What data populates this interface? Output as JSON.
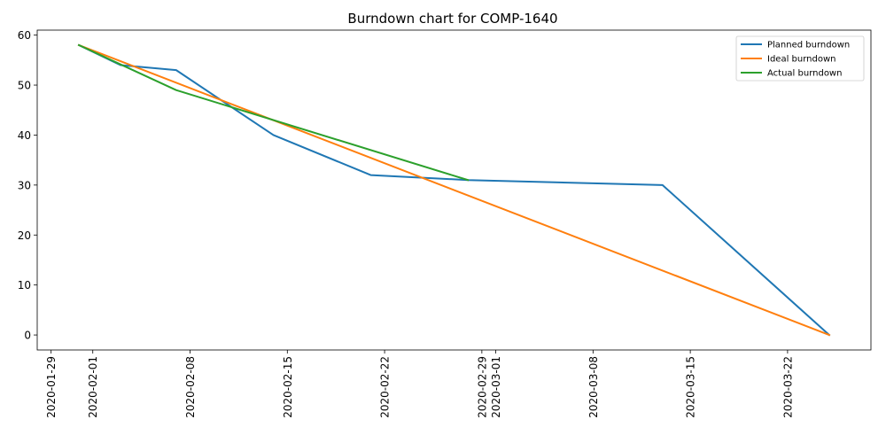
{
  "chart_data": {
    "type": "line",
    "title": "Burndown chart for COMP-1640",
    "xlabel": "",
    "ylabel": "",
    "x_axis_type": "date",
    "xlim": [
      "2020-01-28",
      "2020-03-28"
    ],
    "ylim": [
      -3,
      61
    ],
    "x_ticks": [
      "2020-01-29",
      "2020-02-01",
      "2020-02-08",
      "2020-02-15",
      "2020-02-22",
      "2020-02-29",
      "2020-03-01",
      "2020-03-08",
      "2020-03-15",
      "2020-03-22"
    ],
    "y_ticks": [
      0,
      10,
      20,
      30,
      40,
      50,
      60
    ],
    "grid": false,
    "legend": "top-right",
    "series": [
      {
        "name": "Planned burndown",
        "color": "#1f77b4",
        "x": [
          "2020-01-31",
          "2020-02-03",
          "2020-02-07",
          "2020-02-14",
          "2020-02-21",
          "2020-02-28",
          "2020-03-13",
          "2020-03-25"
        ],
        "y": [
          58,
          54,
          53,
          40,
          32,
          31,
          30,
          0
        ]
      },
      {
        "name": "Ideal burndown",
        "color": "#ff7f0e",
        "x": [
          "2020-01-31",
          "2020-03-25"
        ],
        "y": [
          58,
          0
        ]
      },
      {
        "name": "Actual burndown",
        "color": "#2ca02c",
        "x": [
          "2020-01-31",
          "2020-02-07",
          "2020-02-28"
        ],
        "y": [
          58,
          49,
          31
        ]
      }
    ]
  }
}
